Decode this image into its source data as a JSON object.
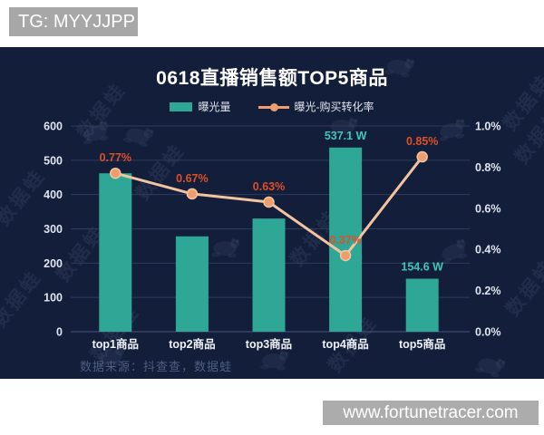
{
  "page": {
    "top_left_badge": "TG: MYYJJPP",
    "bottom_right_badge": "www.fortunetracer.com"
  },
  "chart_data": {
    "type": "bar+line",
    "title": "0618直播销售额TOP5商品",
    "categories": [
      "top1商品",
      "top2商品",
      "top3商品",
      "top4商品",
      "top5商品"
    ],
    "series": [
      {
        "name": "曝光量",
        "type": "bar",
        "axis": "left",
        "unit": "W",
        "values": [
          462,
          278,
          330,
          537.1,
          154.6
        ],
        "point_labels": [
          "",
          "",
          "",
          "537.1 W",
          "154.6 W"
        ]
      },
      {
        "name": "曝光-购买转化率",
        "type": "line",
        "axis": "right",
        "unit": "%",
        "values": [
          0.77,
          0.67,
          0.63,
          0.37,
          0.85
        ],
        "point_labels": [
          "0.77%",
          "0.67%",
          "0.63%",
          "0.37%",
          "0.85%"
        ]
      }
    ],
    "left_axis": {
      "min": 0,
      "max": 600,
      "ticks": [
        "600",
        "500",
        "400",
        "300",
        "200",
        "100",
        "0"
      ]
    },
    "right_axis": {
      "min": 0,
      "max": 1,
      "ticks": [
        "1.0%",
        "0.8%",
        "0.6%",
        "0.4%",
        "0.2%",
        "0.0%"
      ]
    },
    "legend_position": "top-center",
    "grid": "horizontal",
    "source_note": "数据来源：抖查查，数据蛙",
    "watermark_text": "数据蛙"
  },
  "colors": {
    "card_background": "#131e3a",
    "bar": "#2ea796",
    "bar_label": "#3ec8b4",
    "line": "#f3c4a0",
    "line_dot": "#ee9e6e",
    "percent_label": "#de4f28",
    "axis_text": "#dfe5f0",
    "category_text": "#eff2f8",
    "grid_line": "#2e3b5c",
    "grid_base_line": "#49577a",
    "source_text": "#4d5d80"
  }
}
